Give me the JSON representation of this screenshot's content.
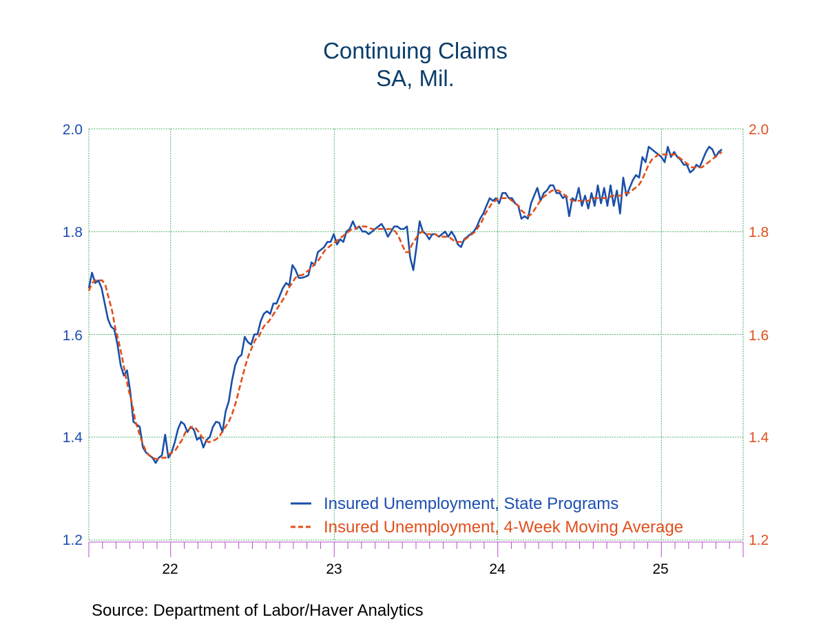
{
  "chart_data": {
    "type": "line",
    "title": "Continuing Claims",
    "subtitle": "SA, Mil.",
    "source": "Source:  Department of Labor/Haver Analytics",
    "xlabel": "",
    "ylabel": "",
    "x_start": 2021.5,
    "x_end": 2025.5,
    "x_tick_labels": [
      "22",
      "23",
      "24",
      "25"
    ],
    "ylim": [
      1.2,
      2.0
    ],
    "yticks_left": [
      "2.0",
      "1.8",
      "1.6",
      "1.4",
      "1.2"
    ],
    "yticks_right": [
      "2.0",
      "1.8",
      "1.6",
      "1.4",
      "1.2"
    ],
    "grid": true,
    "legend_position": "bottom-right",
    "colors": {
      "series1": "#1a4fa8",
      "series2": "#e24e17",
      "grid": "#1e9a3e",
      "axis_ticks": "#b54cc9",
      "title": "#0a3d6b"
    },
    "series": [
      {
        "name": "Insured Unemployment, State Programs",
        "style": "solid",
        "values": [
          1.69,
          1.72,
          1.7,
          1.705,
          1.69,
          1.66,
          1.63,
          1.615,
          1.61,
          1.58,
          1.54,
          1.52,
          1.53,
          1.49,
          1.43,
          1.425,
          1.42,
          1.38,
          1.37,
          1.365,
          1.36,
          1.35,
          1.36,
          1.365,
          1.405,
          1.36,
          1.37,
          1.39,
          1.415,
          1.43,
          1.425,
          1.41,
          1.42,
          1.415,
          1.395,
          1.4,
          1.38,
          1.395,
          1.4,
          1.42,
          1.43,
          1.428,
          1.41,
          1.45,
          1.47,
          1.51,
          1.54,
          1.555,
          1.56,
          1.595,
          1.585,
          1.58,
          1.6,
          1.6,
          1.625,
          1.64,
          1.645,
          1.64,
          1.66,
          1.66,
          1.675,
          1.69,
          1.7,
          1.695,
          1.735,
          1.725,
          1.71,
          1.71,
          1.712,
          1.715,
          1.74,
          1.735,
          1.76,
          1.765,
          1.77,
          1.78,
          1.78,
          1.795,
          1.775,
          1.785,
          1.78,
          1.8,
          1.805,
          1.82,
          1.805,
          1.81,
          1.8,
          1.8,
          1.795,
          1.8,
          1.805,
          1.81,
          1.815,
          1.805,
          1.79,
          1.8,
          1.81,
          1.81,
          1.805,
          1.805,
          1.81,
          1.75,
          1.725,
          1.77,
          1.82,
          1.8,
          1.795,
          1.785,
          1.795,
          1.795,
          1.79,
          1.795,
          1.8,
          1.79,
          1.8,
          1.79,
          1.775,
          1.77,
          1.785,
          1.79,
          1.795,
          1.8,
          1.81,
          1.825,
          1.835,
          1.85,
          1.865,
          1.86,
          1.865,
          1.855,
          1.875,
          1.875,
          1.865,
          1.865,
          1.855,
          1.85,
          1.825,
          1.83,
          1.825,
          1.855,
          1.87,
          1.885,
          1.86,
          1.875,
          1.88,
          1.89,
          1.89,
          1.875,
          1.875,
          1.865,
          1.87,
          1.83,
          1.865,
          1.86,
          1.885,
          1.85,
          1.87,
          1.845,
          1.875,
          1.85,
          1.89,
          1.855,
          1.885,
          1.85,
          1.89,
          1.85,
          1.88,
          1.835,
          1.905,
          1.87,
          1.885,
          1.9,
          1.91,
          1.905,
          1.945,
          1.935,
          1.965,
          1.96,
          1.955,
          1.95,
          1.945,
          1.935,
          1.965,
          1.945,
          1.955,
          1.945,
          1.94,
          1.93,
          1.93,
          1.915,
          1.92,
          1.93,
          1.925,
          1.94,
          1.955,
          1.965,
          1.96,
          1.945,
          1.955,
          1.96
        ]
      },
      {
        "name": "Insured Unemployment, 4-Week Moving Average",
        "style": "dashed",
        "values": [
          1.685,
          1.7,
          1.705,
          1.705,
          1.705,
          1.695,
          1.67,
          1.645,
          1.61,
          1.585,
          1.555,
          1.52,
          1.49,
          1.465,
          1.43,
          1.41,
          1.39,
          1.375,
          1.365,
          1.36,
          1.358,
          1.357,
          1.36,
          1.36,
          1.367,
          1.37,
          1.375,
          1.385,
          1.395,
          1.41,
          1.415,
          1.42,
          1.418,
          1.41,
          1.4,
          1.395,
          1.39,
          1.393,
          1.395,
          1.4,
          1.41,
          1.42,
          1.43,
          1.445,
          1.465,
          1.49,
          1.515,
          1.54,
          1.56,
          1.575,
          1.59,
          1.595,
          1.61,
          1.62,
          1.625,
          1.635,
          1.645,
          1.655,
          1.665,
          1.675,
          1.69,
          1.7,
          1.71,
          1.715,
          1.715,
          1.72,
          1.725,
          1.73,
          1.74,
          1.745,
          1.755,
          1.765,
          1.77,
          1.775,
          1.78,
          1.785,
          1.79,
          1.795,
          1.8,
          1.805,
          1.805,
          1.81,
          1.81,
          1.81,
          1.808,
          1.805,
          1.805,
          1.805,
          1.805,
          1.805,
          1.805,
          1.805,
          1.8,
          1.79,
          1.775,
          1.76,
          1.76,
          1.775,
          1.785,
          1.795,
          1.8,
          1.795,
          1.795,
          1.795,
          1.795,
          1.79,
          1.79,
          1.79,
          1.79,
          1.785,
          1.78,
          1.78,
          1.78,
          1.785,
          1.79,
          1.795,
          1.8,
          1.81,
          1.82,
          1.835,
          1.845,
          1.855,
          1.86,
          1.865,
          1.865,
          1.865,
          1.865,
          1.86,
          1.855,
          1.85,
          1.84,
          1.835,
          1.83,
          1.835,
          1.845,
          1.855,
          1.865,
          1.87,
          1.875,
          1.88,
          1.88,
          1.88,
          1.875,
          1.87,
          1.865,
          1.86,
          1.86,
          1.86,
          1.86,
          1.86,
          1.86,
          1.865,
          1.865,
          1.865,
          1.865,
          1.865,
          1.865,
          1.87,
          1.87,
          1.87,
          1.87,
          1.875,
          1.875,
          1.88,
          1.885,
          1.89,
          1.9,
          1.915,
          1.93,
          1.94,
          1.945,
          1.95,
          1.95,
          1.95,
          1.95,
          1.95,
          1.95,
          1.945,
          1.94,
          1.935,
          1.93,
          1.925,
          1.925,
          1.925,
          1.925,
          1.93,
          1.935,
          1.94,
          1.945,
          1.95,
          1.955
        ]
      }
    ]
  }
}
